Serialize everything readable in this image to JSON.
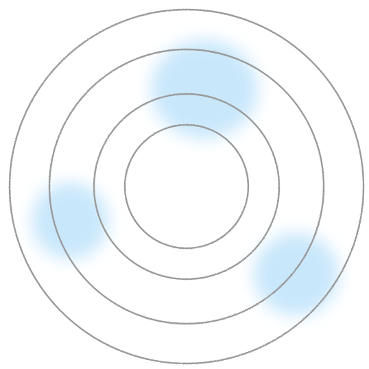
{
  "colors": {
    "background": "#ffffff",
    "ring_stroke": "#9a9a9a",
    "blob_fill": "#bfe3fb"
  },
  "rings": [
    {
      "name": "innermost-ring"
    },
    {
      "name": "inner-ring"
    },
    {
      "name": "middle-ring"
    },
    {
      "name": "outer-ring"
    }
  ],
  "blobs": [
    {
      "name": "top-blob"
    },
    {
      "name": "left-blob"
    },
    {
      "name": "bottom-right-blob"
    }
  ]
}
